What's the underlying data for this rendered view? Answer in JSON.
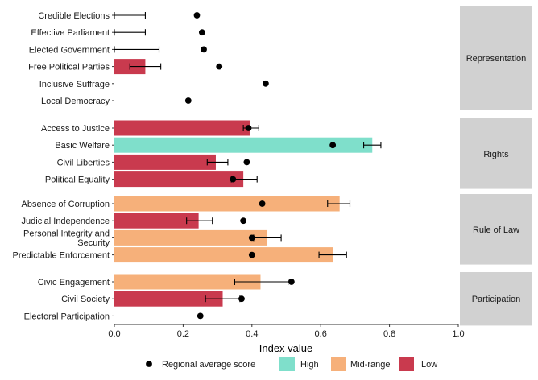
{
  "chart_data": {
    "type": "bar",
    "xlabel": "Index value",
    "xlim": [
      0.0,
      1.0
    ],
    "xticks": [
      "0.0",
      "0.2",
      "0.4",
      "0.6",
      "0.8",
      "1.0"
    ],
    "grid": false,
    "legend_position": "bottom",
    "legend": [
      {
        "name": "Regional average score",
        "kind": "point",
        "color": "#000000"
      },
      {
        "name": "High",
        "kind": "fill",
        "color": "#7fdfcb"
      },
      {
        "name": "Mid-range",
        "kind": "fill",
        "color": "#f6b07a"
      },
      {
        "name": "Low",
        "kind": "fill",
        "color": "#c93a4e"
      }
    ],
    "panels": [
      {
        "label": "Representation",
        "rows": [
          {
            "label": [
              "Credible Elections"
            ],
            "value": null,
            "level": null,
            "avg": 0.24,
            "err": [
              0.0,
              0.09
            ]
          },
          {
            "label": [
              "Effective Parliament"
            ],
            "value": null,
            "level": null,
            "avg": 0.255,
            "err": [
              0.0,
              0.09
            ]
          },
          {
            "label": [
              "Elected Government"
            ],
            "value": null,
            "level": null,
            "avg": 0.26,
            "err": [
              0.0,
              0.13
            ]
          },
          {
            "label": [
              "Free Political Parties"
            ],
            "value": 0.09,
            "level": "Low",
            "avg": 0.305,
            "err": [
              0.045,
              0.135
            ]
          },
          {
            "label": [
              "Inclusive Suffrage"
            ],
            "value": null,
            "level": null,
            "avg": 0.44,
            "err": null
          },
          {
            "label": [
              "Local Democracy"
            ],
            "value": null,
            "level": null,
            "avg": 0.215,
            "err": null
          }
        ]
      },
      {
        "label": "Rights",
        "rows": [
          {
            "label": [
              "Access to Justice"
            ],
            "value": 0.395,
            "level": "Low",
            "avg": 0.39,
            "err": [
              0.375,
              0.42
            ]
          },
          {
            "label": [
              "Basic Welfare"
            ],
            "value": 0.75,
            "level": "High",
            "avg": 0.635,
            "err": [
              0.725,
              0.775
            ]
          },
          {
            "label": [
              "Civil Liberties"
            ],
            "value": 0.295,
            "level": "Low",
            "avg": 0.385,
            "err": [
              0.27,
              0.33
            ]
          },
          {
            "label": [
              "Political Equality"
            ],
            "value": 0.375,
            "level": "Low",
            "avg": 0.345,
            "err": [
              0.34,
              0.415
            ]
          }
        ]
      },
      {
        "label": "Rule of Law",
        "rows": [
          {
            "label": [
              "Absence of Corruption"
            ],
            "value": 0.655,
            "level": "Mid-range",
            "avg": 0.43,
            "err": [
              0.62,
              0.685
            ]
          },
          {
            "label": [
              "Judicial Independence"
            ],
            "value": 0.245,
            "level": "Low",
            "avg": 0.375,
            "err": [
              0.21,
              0.285
            ]
          },
          {
            "label": [
              "Personal Integrity and",
              "Security"
            ],
            "value": 0.445,
            "level": "Mid-range",
            "avg": 0.4,
            "err": [
              0.405,
              0.485
            ]
          },
          {
            "label": [
              "Predictable Enforcement"
            ],
            "value": 0.635,
            "level": "Mid-range",
            "avg": 0.4,
            "err": [
              0.595,
              0.675
            ]
          }
        ]
      },
      {
        "label": "Participation",
        "rows": [
          {
            "label": [
              "Civic Engagement"
            ],
            "value": 0.425,
            "level": "Mid-range",
            "avg": 0.515,
            "err": [
              0.35,
              0.505
            ]
          },
          {
            "label": [
              "Civil Society"
            ],
            "value": 0.315,
            "level": "Low",
            "avg": 0.37,
            "err": [
              0.265,
              0.365
            ]
          },
          {
            "label": [
              "Electoral Participation"
            ],
            "value": null,
            "level": null,
            "avg": 0.25,
            "err": null
          }
        ]
      }
    ]
  },
  "colors": {
    "High": "#7fdfcb",
    "Mid-range": "#f6b07a",
    "Low": "#c93a4e",
    "strip": "#d1d1d1",
    "point": "#000000"
  }
}
